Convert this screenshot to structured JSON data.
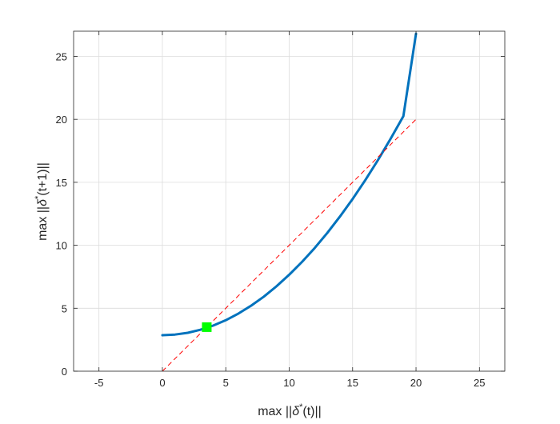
{
  "chart_data": {
    "type": "line",
    "title": "",
    "xlabel": {
      "pre": "max ||",
      "delta": "δ",
      "sup": "*",
      "post": "(t)||"
    },
    "ylabel": {
      "pre": "max ||",
      "delta": "δ",
      "sup": "*",
      "post": "(t+1)||"
    },
    "xlim": [
      -7,
      27
    ],
    "ylim": [
      0,
      27
    ],
    "xticks": [
      -5,
      0,
      5,
      10,
      15,
      20,
      25
    ],
    "yticks": [
      0,
      5,
      10,
      15,
      20,
      25
    ],
    "grid": true,
    "series": [
      {
        "kind": "curve",
        "style": "solid",
        "color": "#0072BD",
        "x": [
          0,
          1,
          2,
          3,
          4,
          5,
          6,
          7,
          8,
          9,
          10,
          11,
          12,
          13,
          14,
          15,
          16,
          17,
          18,
          19,
          20
        ],
        "y": [
          2.86,
          2.91,
          3.05,
          3.29,
          3.62,
          4.05,
          4.58,
          5.2,
          5.92,
          6.74,
          7.66,
          8.67,
          9.77,
          10.98,
          12.28,
          13.68,
          15.17,
          16.77,
          18.46,
          20.25,
          26.8
        ]
      },
      {
        "kind": "reference-line",
        "style": "dashed",
        "color": "#FF0000",
        "x": [
          0,
          20
        ],
        "y": [
          0,
          20
        ]
      }
    ],
    "markers": [
      {
        "shape": "square",
        "color": "#00FF00",
        "x": 3.5,
        "y": 3.5
      }
    ]
  }
}
